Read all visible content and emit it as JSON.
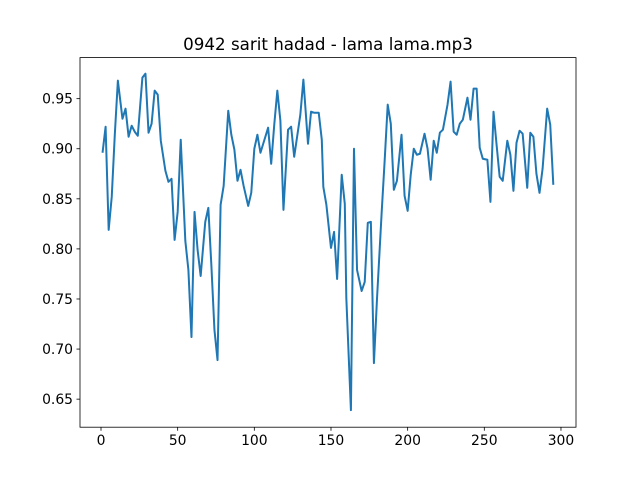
{
  "chart_data": {
    "type": "line",
    "title": "0942 sarit hadad - lama lama.mp3",
    "x": [
      1,
      3,
      5,
      7,
      9,
      11,
      14,
      16,
      18,
      20,
      22,
      24,
      27,
      29,
      31,
      33,
      35,
      37,
      39,
      42,
      44,
      46,
      48,
      50,
      52,
      55,
      57,
      59,
      61,
      63,
      65,
      68,
      70,
      72,
      74,
      76,
      78,
      80,
      83,
      85,
      87,
      89,
      91,
      93,
      96,
      98,
      100,
      102,
      104,
      106,
      109,
      111,
      113,
      115,
      117,
      119,
      122,
      124,
      126,
      128,
      130,
      132,
      135,
      137,
      139,
      142,
      144,
      145,
      147,
      150,
      152,
      154,
      157,
      159,
      160,
      163,
      165,
      167,
      170,
      172,
      174,
      176,
      178,
      180,
      183,
      185,
      187,
      189,
      191,
      193,
      196,
      198,
      200,
      202,
      204,
      206,
      208,
      211,
      213,
      215,
      217,
      219,
      221,
      223,
      226,
      228,
      230,
      232,
      234,
      236,
      239,
      241,
      243,
      245,
      247,
      249,
      252,
      254,
      256,
      258,
      260,
      262,
      265,
      267,
      269,
      271,
      273,
      275,
      278,
      280,
      282,
      284,
      286,
      288,
      291,
      293,
      295
    ],
    "values": [
      0.896,
      0.922,
      0.819,
      0.852,
      0.914,
      0.968,
      0.93,
      0.94,
      0.912,
      0.923,
      0.917,
      0.913,
      0.971,
      0.975,
      0.916,
      0.925,
      0.958,
      0.954,
      0.908,
      0.878,
      0.867,
      0.87,
      0.809,
      0.837,
      0.909,
      0.808,
      0.779,
      0.712,
      0.837,
      0.799,
      0.773,
      0.827,
      0.841,
      0.783,
      0.719,
      0.689,
      0.844,
      0.863,
      0.938,
      0.914,
      0.899,
      0.868,
      0.879,
      0.863,
      0.843,
      0.856,
      0.9,
      0.914,
      0.896,
      0.906,
      0.921,
      0.885,
      0.924,
      0.958,
      0.928,
      0.839,
      0.919,
      0.922,
      0.892,
      0.913,
      0.934,
      0.969,
      0.905,
      0.937,
      0.936,
      0.936,
      0.909,
      0.862,
      0.844,
      0.801,
      0.817,
      0.77,
      0.874,
      0.845,
      0.751,
      0.639,
      0.9,
      0.779,
      0.758,
      0.767,
      0.826,
      0.827,
      0.686,
      0.75,
      0.835,
      0.888,
      0.944,
      0.925,
      0.859,
      0.868,
      0.914,
      0.853,
      0.838,
      0.874,
      0.9,
      0.894,
      0.895,
      0.915,
      0.9,
      0.869,
      0.908,
      0.896,
      0.916,
      0.919,
      0.944,
      0.967,
      0.917,
      0.914,
      0.925,
      0.929,
      0.951,
      0.929,
      0.96,
      0.96,
      0.901,
      0.89,
      0.889,
      0.847,
      0.937,
      0.904,
      0.872,
      0.868,
      0.908,
      0.894,
      0.858,
      0.906,
      0.918,
      0.915,
      0.861,
      0.916,
      0.912,
      0.875,
      0.856,
      0.88,
      0.94,
      0.924,
      0.864
    ],
    "color": "#1f77b4",
    "xlim": [
      -13.7,
      309.8
    ],
    "ylim": [
      0.622,
      0.991
    ],
    "xticks": [
      0,
      50,
      100,
      150,
      200,
      250,
      300
    ],
    "yticks": [
      0.65,
      {
        "value": 0.7,
        "label": "0.70"
      },
      0.75,
      {
        "value": 0.8,
        "label": "0.80"
      },
      0.85,
      {
        "value": 0.9,
        "label": "0.90"
      },
      0.95
    ],
    "grid": false
  }
}
